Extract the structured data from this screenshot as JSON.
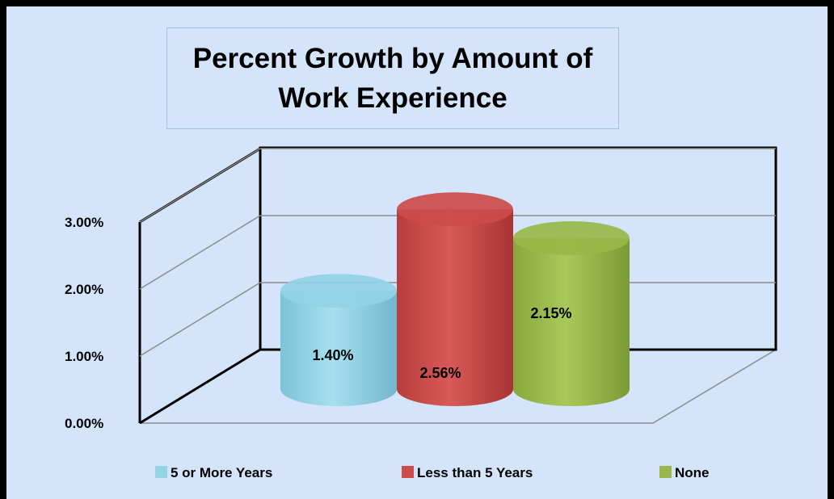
{
  "chart_data": {
    "type": "bar",
    "style": "3d-cylinder",
    "title": "Percent Growth by Amount of Work Experience",
    "xlabel": "",
    "ylabel": "",
    "ylim": [
      0,
      3
    ],
    "yticks": [
      "0.00%",
      "1.00%",
      "2.00%",
      "3.00%"
    ],
    "grid": true,
    "legend": "bottom",
    "categories": [
      "5 or More Years",
      "Less than 5 Years",
      "None"
    ],
    "values": [
      1.4,
      2.56,
      2.15
    ],
    "data_labels": [
      "1.40%",
      "2.56%",
      "2.15%"
    ],
    "colors": [
      "#93d3e6",
      "#cc4b4b",
      "#97b84a"
    ]
  }
}
